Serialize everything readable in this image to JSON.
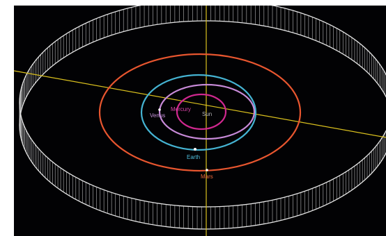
{
  "colors": {
    "space": "#020204",
    "frame": "#ffffff",
    "outer_ring": "#e8e8e8",
    "mars_orbit": "#e8562f",
    "earth_orbit": "#45b3d2",
    "venus_orbit": "#c78ad8",
    "mercury_orbit": "#d0288f",
    "ecliptic_axis": "#dcc21e",
    "sun_label": "#b8b8b8",
    "mercury_label": "#dd44a8",
    "venus_label": "#c995dc",
    "earth_label": "#4fc0de",
    "mars_label": "#ef6a3a"
  },
  "labels": {
    "sun": "Sun",
    "mercury": "Mercury",
    "venus": "Venus",
    "earth": "Earth",
    "mars": "Mars"
  }
}
